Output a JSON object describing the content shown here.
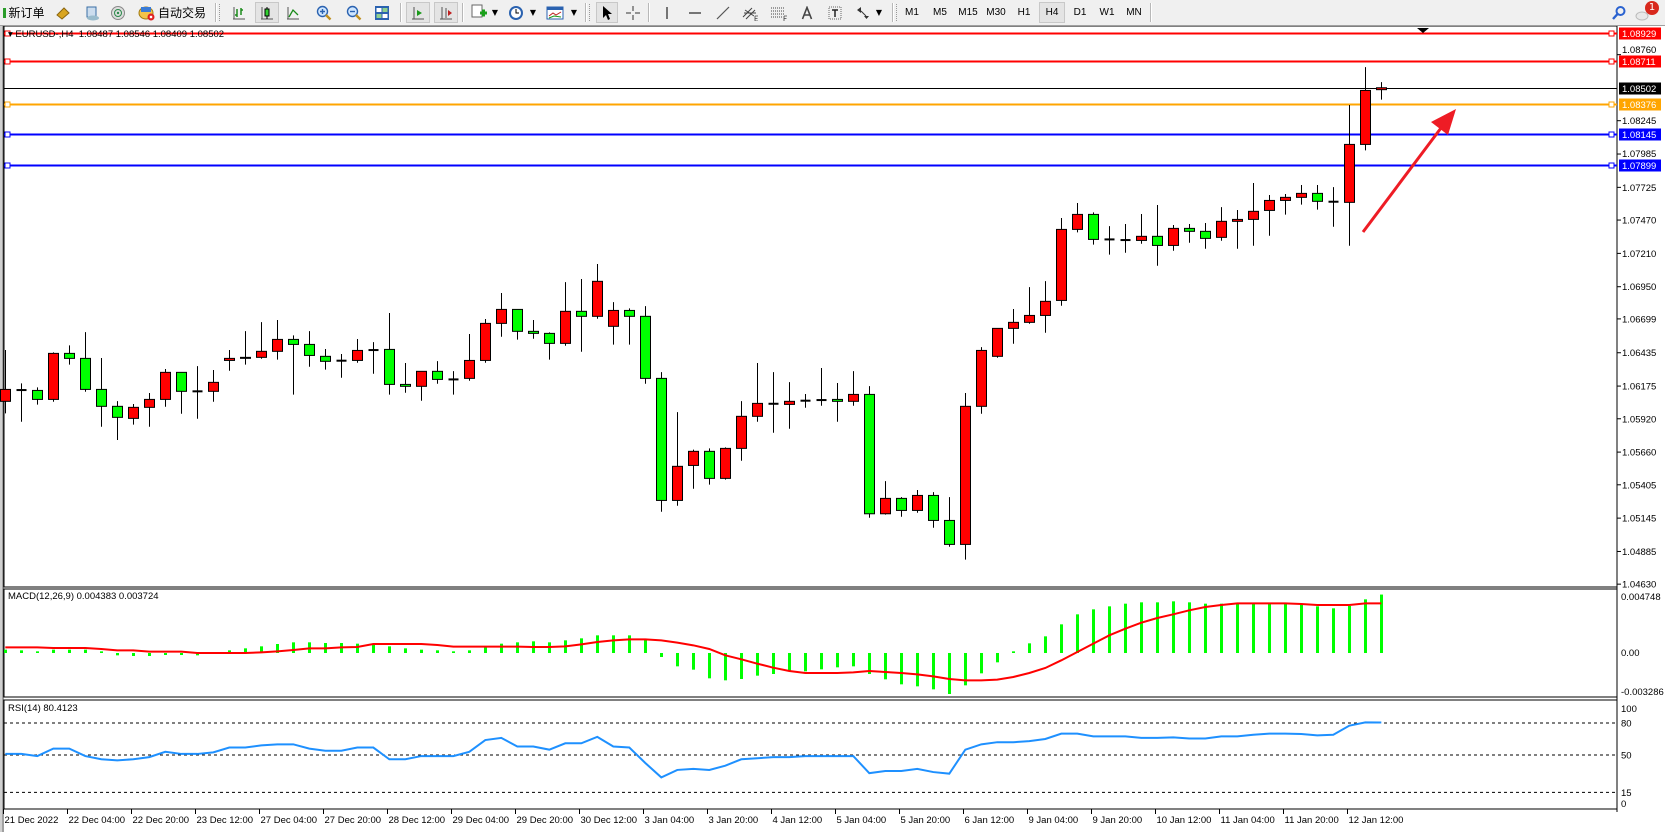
{
  "toolbar": {
    "new_order_label": "新订单",
    "auto_trading_label": "自动交易",
    "timeframes": [
      "M1",
      "M5",
      "M15",
      "M30",
      "H1",
      "H4",
      "D1",
      "W1",
      "MN"
    ],
    "active_timeframe": "H4",
    "notification_count": "1",
    "icons": [
      "new-order-icon",
      "market-watch-icon",
      "data-window-icon",
      "navigator-icon",
      "auto-trading-icon",
      "bar-chart-icon",
      "candlestick-icon",
      "line-chart-icon",
      "zoom-in-icon",
      "zoom-out-icon",
      "tile-windows-icon",
      "auto-scroll-icon",
      "chart-shift-icon",
      "indicators-icon",
      "periods-icon",
      "templates-icon",
      "cursor-icon",
      "crosshair-icon",
      "vertical-line-icon",
      "horizontal-line-icon",
      "trendline-icon",
      "equidistant-channel-icon",
      "fibonacci-icon",
      "text-icon",
      "text-label-icon",
      "arrows-icon",
      "search-icon",
      "chat-icon"
    ]
  },
  "chart": {
    "header": "EURUSD-,H4  1.08487 1.08546 1.08409 1.08502",
    "macd_label": "MACD(12,26,9) 0.004383 0.003724",
    "rsi_label": "RSI(14) 80.4123",
    "bull_color": "#ff0000",
    "bear_color": "#00ff00"
  },
  "chart_data": {
    "type": "candlestick",
    "symbol": "EURUSD-",
    "timeframe": "H4",
    "ohlc_header": {
      "open": 1.08487,
      "high": 1.08546,
      "low": 1.08409,
      "close": 1.08502
    },
    "ylim": [
      1.0463,
      1.08929
    ],
    "x_tick_labels": [
      "21 Dec 2022",
      "22 Dec 04:00",
      "22 Dec 20:00",
      "23 Dec 12:00",
      "27 Dec 04:00",
      "27 Dec 20:00",
      "28 Dec 12:00",
      "29 Dec 04:00",
      "29 Dec 20:00",
      "30 Dec 12:00",
      "3 Jan 04:00",
      "3 Jan 20:00",
      "4 Jan 12:00",
      "5 Jan 04:00",
      "5 Jan 20:00",
      "6 Jan 12:00",
      "9 Jan 04:00",
      "9 Jan 20:00",
      "10 Jan 12:00",
      "11 Jan 04:00",
      "11 Jan 20:00",
      "12 Jan 12:00"
    ],
    "bars_per_x_tick": 4,
    "y_tick_labels": [
      "1.08929",
      "1.08760",
      "1.08711",
      "1.08502",
      "1.08376",
      "1.08245",
      "1.08145",
      "1.07985",
      "1.07899",
      "1.07725",
      "1.07470",
      "1.07210",
      "1.06950",
      "1.06699",
      "1.06435",
      "1.06175",
      "1.05920",
      "1.05660",
      "1.05405",
      "1.05145",
      "1.04885",
      "1.04630"
    ],
    "horizontal_lines": [
      {
        "price": "1.08929",
        "color": "#ff0000"
      },
      {
        "price": "1.08711",
        "color": "#ff0000"
      },
      {
        "price": "1.08376",
        "color": "#ffa500"
      },
      {
        "price": "1.08145",
        "color": "#0000ff"
      },
      {
        "price": "1.07899",
        "color": "#0000ff"
      }
    ],
    "current_price": {
      "price": "1.08502",
      "color": "#000000"
    },
    "candles": [
      [
        1.06056,
        1.06456,
        1.05962,
        1.06149
      ],
      [
        1.06144,
        1.06196,
        1.05897,
        1.06144
      ],
      [
        1.06141,
        1.06165,
        1.0603,
        1.06071
      ],
      [
        1.06071,
        1.06438,
        1.06053,
        1.0643
      ],
      [
        1.0643,
        1.06492,
        1.06342,
        1.06391
      ],
      [
        1.06391,
        1.06596,
        1.06131,
        1.06149
      ],
      [
        1.06149,
        1.06394,
        1.05858,
        1.06017
      ],
      [
        1.06017,
        1.06058,
        1.05754,
        1.05931
      ],
      [
        1.05923,
        1.06035,
        1.05874,
        1.06009
      ],
      [
        1.06009,
        1.06121,
        1.05858,
        1.06071
      ],
      [
        1.06071,
        1.06308,
        1.06014,
        1.06282
      ],
      [
        1.06282,
        1.06282,
        1.05959,
        1.06134
      ],
      [
        1.06134,
        1.06331,
        1.0592,
        1.06134
      ],
      [
        1.06134,
        1.063,
        1.06053,
        1.06204
      ],
      [
        1.06375,
        1.06456,
        1.06295,
        1.06391
      ],
      [
        1.06394,
        1.06604,
        1.06342,
        1.06399
      ],
      [
        1.06399,
        1.06674,
        1.06388,
        1.06446
      ],
      [
        1.06446,
        1.0669,
        1.06381,
        1.06539
      ],
      [
        1.06539,
        1.0657,
        1.06108,
        1.065
      ],
      [
        1.065,
        1.06604,
        1.06326,
        1.06414
      ],
      [
        1.06407,
        1.06464,
        1.06303,
        1.06368
      ],
      [
        1.06373,
        1.06425,
        1.0624,
        1.06373
      ],
      [
        1.06375,
        1.06542,
        1.06357,
        1.06453
      ],
      [
        1.06456,
        1.06518,
        1.06271,
        1.06459
      ],
      [
        1.06461,
        1.06745,
        1.06108,
        1.06188
      ],
      [
        1.06188,
        1.06355,
        1.06123,
        1.06173
      ],
      [
        1.06173,
        1.0629,
        1.06061,
        1.0629
      ],
      [
        1.0629,
        1.0637,
        1.06193,
        1.06227
      ],
      [
        1.06227,
        1.06292,
        1.06108,
        1.06227
      ],
      [
        1.06235,
        1.06581,
        1.06217,
        1.06375
      ],
      [
        1.06375,
        1.06698,
        1.06357,
        1.06664
      ],
      [
        1.06664,
        1.06901,
        1.0656,
        1.06773
      ],
      [
        1.06773,
        1.06773,
        1.06537,
        1.06602
      ],
      [
        1.06602,
        1.0669,
        1.06544,
        1.06586
      ],
      [
        1.06586,
        1.06594,
        1.06381,
        1.06508
      ],
      [
        1.06508,
        1.06986,
        1.0649,
        1.06758
      ],
      [
        1.06758,
        1.0701,
        1.06443,
        1.06719
      ],
      [
        1.06719,
        1.07127,
        1.067,
        1.06992
      ],
      [
        1.06641,
        1.0683,
        1.06498,
        1.06765
      ],
      [
        1.06765,
        1.06781,
        1.06498,
        1.06719
      ],
      [
        1.06719,
        1.06799,
        1.06193,
        1.06235
      ],
      [
        1.06235,
        1.06284,
        1.05195,
        1.05283
      ],
      [
        1.05283,
        1.05972,
        1.05242,
        1.05549
      ],
      [
        1.05556,
        1.05679,
        1.05374,
        1.05666
      ],
      [
        1.05666,
        1.05689,
        1.05406,
        1.05455
      ],
      [
        1.05455,
        1.05697,
        1.05445,
        1.05689
      ],
      [
        1.05689,
        1.06058,
        1.05593,
        1.05939
      ],
      [
        1.05939,
        1.06355,
        1.05897,
        1.0604
      ],
      [
        1.06037,
        1.06284,
        1.05811,
        1.06037
      ],
      [
        1.06032,
        1.06206,
        1.05842,
        1.06056
      ],
      [
        1.06061,
        1.06113,
        1.06006,
        1.06061
      ],
      [
        1.06066,
        1.06316,
        1.06022,
        1.06069
      ],
      [
        1.06071,
        1.06199,
        1.05897,
        1.06056
      ],
      [
        1.06056,
        1.06292,
        1.06022,
        1.0611
      ],
      [
        1.0611,
        1.06175,
        1.05148,
        1.05179
      ],
      [
        1.05179,
        1.05434,
        1.05172,
        1.05299
      ],
      [
        1.05299,
        1.05309,
        1.05156,
        1.05205
      ],
      [
        1.05205,
        1.05364,
        1.05187,
        1.05322
      ],
      [
        1.05322,
        1.05348,
        1.0507,
        1.05127
      ],
      [
        1.05127,
        1.05309,
        1.04922,
        1.0494
      ],
      [
        1.0494,
        1.06121,
        1.04821,
        1.06017
      ],
      [
        1.06017,
        1.06479,
        1.05959,
        1.06453
      ],
      [
        1.06407,
        1.06625,
        1.06396,
        1.06625
      ],
      [
        1.06625,
        1.06776,
        1.06505,
        1.06672
      ],
      [
        1.06672,
        1.06947,
        1.06661,
        1.06726
      ],
      [
        1.06726,
        1.06994,
        1.06591,
        1.06836
      ],
      [
        1.06843,
        1.07486,
        1.06802,
        1.07397
      ],
      [
        1.07397,
        1.07603,
        1.07374,
        1.07514
      ],
      [
        1.07514,
        1.0753,
        1.07278,
        1.07319
      ],
      [
        1.07319,
        1.07423,
        1.072,
        1.07319
      ],
      [
        1.07314,
        1.07439,
        1.07215,
        1.07317
      ],
      [
        1.07311,
        1.07517,
        1.07285,
        1.07343
      ],
      [
        1.07343,
        1.07587,
        1.07114,
        1.07272
      ],
      [
        1.07272,
        1.07431,
        1.07231,
        1.07405
      ],
      [
        1.07405,
        1.07439,
        1.07293,
        1.07382
      ],
      [
        1.07382,
        1.07447,
        1.07246,
        1.07327
      ],
      [
        1.07335,
        1.07571,
        1.07309,
        1.0746
      ],
      [
        1.0746,
        1.07548,
        1.07246,
        1.07475
      ],
      [
        1.07475,
        1.07759,
        1.0727,
        1.07538
      ],
      [
        1.07545,
        1.07665,
        1.07348,
        1.07623
      ],
      [
        1.07623,
        1.07673,
        1.07512,
        1.07647
      ],
      [
        1.07647,
        1.07743,
        1.0759,
        1.07678
      ],
      [
        1.07678,
        1.07743,
        1.07551,
        1.07616
      ],
      [
        1.07613,
        1.07727,
        1.07418,
        1.07613
      ],
      [
        1.07608,
        1.08367,
        1.0727,
        1.0806
      ],
      [
        1.0806,
        1.08663,
        1.08013,
        1.08481
      ],
      [
        1.08487,
        1.08546,
        1.08409,
        1.08502
      ]
    ],
    "macd": {
      "params": "12,26,9",
      "ylim": [
        -0.003286,
        0.004748
      ],
      "y_tick_labels": [
        "0.004748",
        "0.00",
        "-0.003286"
      ],
      "main": [
        0.00025,
        0.0002,
        0.000125,
        0.00025,
        0.00025,
        0.00025,
        0.000125,
        -0.000175,
        -0.000225,
        -0.000225,
        -0.00015,
        -0.00015,
        -0.000175,
        2e-05,
        0.0002,
        0.00035,
        0.0005,
        0.000675,
        0.0008,
        0.0008,
        0.00075,
        0.00075,
        0.0007,
        0.000625,
        0.0005,
        0.00035,
        0.00025,
        0.0002,
        0.000125,
        0.0002,
        0.00045,
        0.0007,
        0.0008,
        0.000875,
        0.0008,
        0.00095,
        0.0011,
        0.001325,
        0.001325,
        0.001325,
        0.001,
        -0.0003,
        -0.001,
        -0.00125,
        -0.0019,
        -0.00205,
        -0.00195,
        -0.0017,
        -0.001575,
        -0.001375,
        -0.001375,
        -0.001225,
        -0.001075,
        -0.001,
        -0.001575,
        -0.001975,
        -0.00235,
        -0.0025,
        -0.002725,
        -0.003075,
        -0.002425,
        -0.001525,
        -0.0007,
        0.000125,
        0.000725,
        0.00125,
        0.00215,
        0.0029,
        0.003275,
        0.0035,
        0.0037,
        0.0038,
        0.0038,
        0.003875,
        0.0038,
        0.0037,
        0.0037,
        0.0037,
        0.0037,
        0.0037,
        0.0037,
        0.003625,
        0.0035,
        0.00335,
        0.003525,
        0.004025,
        0.004383
      ],
      "signal": [
        0.000425,
        0.000425,
        0.000425,
        0.000375,
        0.000375,
        0.000375,
        0.0003,
        0.0002,
        0.0002,
        0.0001,
        0.0001,
        0.0001,
        0,
        0,
        0,
        0,
        5e-05,
        0.000125,
        0.000225,
        0.00035,
        0.00035,
        0.000425,
        0.00045,
        0.000675,
        0.000675,
        0.000675,
        0.000675,
        0.0006,
        0.000475,
        0.000475,
        0.000475,
        0.000475,
        0.000475,
        0.00045,
        0.00045,
        0.0005,
        0.00065,
        0.000825,
        0.00095,
        0.001025,
        0.001025,
        0.00095,
        0.000775,
        0.000575,
        0.0003,
        -0.000175,
        -0.000475,
        -0.0008,
        -0.0011,
        -0.00135,
        -0.0015,
        -0.0015,
        -0.0015,
        -0.00145,
        -0.00135,
        -0.001425,
        -0.0015,
        -0.0016,
        -0.00175,
        -0.00195,
        -0.00205,
        -0.00205,
        -0.002,
        -0.0018,
        -0.0015,
        -0.001125,
        -0.00055,
        7.5e-05,
        0.0007,
        0.001325,
        0.001825,
        0.002275,
        0.002625,
        0.0029,
        0.0032,
        0.00345,
        0.0036,
        0.003725,
        0.003725,
        0.003725,
        0.003725,
        0.003675,
        0.0036,
        0.0036,
        0.0036,
        0.003724,
        0.003724
      ],
      "hist_color": "#00ff00",
      "signal_color": "#ff0000"
    },
    "rsi": {
      "period": 14,
      "ylim": [
        0,
        100
      ],
      "levels": [
        80,
        50,
        15
      ],
      "y_tick_labels": [
        "100",
        "80",
        "50",
        "15",
        "0"
      ],
      "values": [
        51,
        51,
        49,
        56,
        56,
        49,
        46,
        45,
        46,
        48,
        53,
        51,
        51,
        52.5,
        57,
        57,
        59,
        60,
        60,
        56,
        54,
        54,
        57,
        57,
        46,
        46,
        49,
        49,
        49,
        53,
        64,
        66,
        58,
        58,
        55,
        61,
        61,
        67,
        58,
        57,
        42.5,
        29,
        36,
        37,
        36,
        40,
        46,
        47,
        48,
        48,
        49,
        49,
        49,
        49,
        33,
        35,
        35,
        37,
        34,
        32.5,
        55,
        60,
        62,
        62,
        63,
        65,
        70,
        70,
        67.5,
        67.5,
        67.5,
        66,
        66,
        66.5,
        65.5,
        65.5,
        67.5,
        67.5,
        69,
        70,
        70,
        69.7,
        68.4,
        69,
        77.5,
        80.6,
        80.4123
      ],
      "color": "#1e90ff"
    }
  }
}
